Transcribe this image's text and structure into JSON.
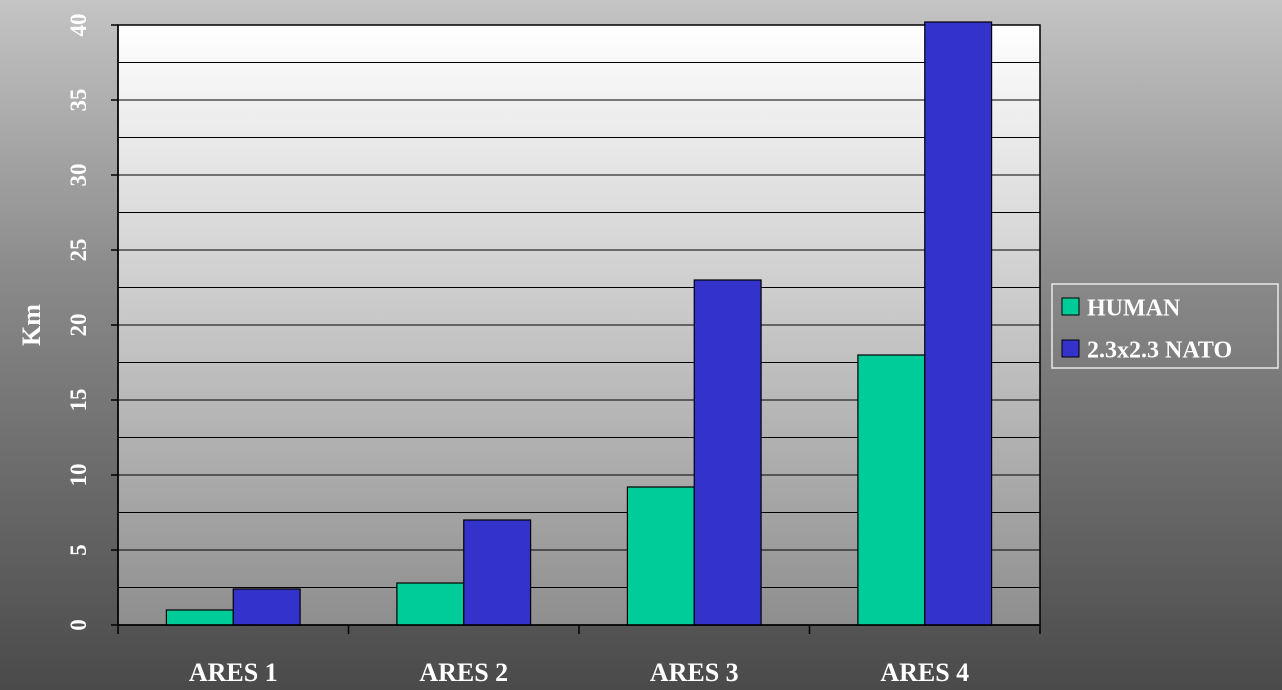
{
  "chart_data": {
    "type": "bar",
    "title": "",
    "xlabel": "",
    "ylabel": "Km",
    "ylim": [
      0,
      40
    ],
    "yticks": [
      0,
      5,
      10,
      15,
      20,
      25,
      30,
      35,
      40
    ],
    "categories": [
      "ARES 1",
      "ARES 2",
      "ARES 3",
      "ARES 4"
    ],
    "series": [
      {
        "name": "HUMAN",
        "color": "#00cc99",
        "values": [
          1,
          2.8,
          9.2,
          18
        ]
      },
      {
        "name": "2.3x2.3 NATO",
        "color": "#3333cc",
        "values": [
          2.4,
          7,
          23,
          40.3
        ]
      }
    ],
    "grid": true,
    "legend_position": "right"
  }
}
